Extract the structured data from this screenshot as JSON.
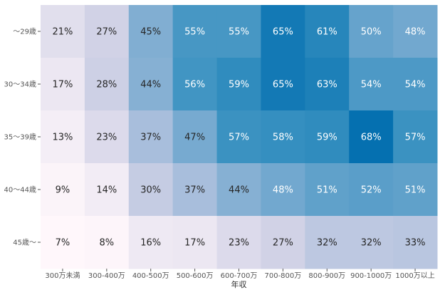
{
  "chart_data": {
    "type": "heatmap",
    "title": "",
    "xlabel": "年収",
    "ylabel": "",
    "x_categories": [
      "300万未満",
      "300-400万",
      "400-500万",
      "500-600万",
      "600-700万",
      "700-800万",
      "800-900万",
      "900-1000万",
      "1000万以上"
    ],
    "y_categories": [
      "～29歳",
      "30～34歳",
      "35～39歳",
      "40～44歳",
      "45歳～"
    ],
    "values": [
      [
        21,
        27,
        45,
        55,
        55,
        65,
        61,
        50,
        48
      ],
      [
        17,
        28,
        44,
        56,
        59,
        65,
        63,
        54,
        54
      ],
      [
        13,
        23,
        37,
        47,
        57,
        58,
        59,
        68,
        57
      ],
      [
        9,
        14,
        30,
        37,
        44,
        48,
        51,
        52,
        51
      ],
      [
        7,
        8,
        16,
        17,
        23,
        27,
        32,
        32,
        33
      ]
    ],
    "value_suffix": "%",
    "color_scale": [
      "#fff7fb",
      "#ece7f2",
      "#d0d1e6",
      "#a6bddb",
      "#74a9cf",
      "#3690c0",
      "#0570b0"
    ],
    "colorbar": false
  }
}
